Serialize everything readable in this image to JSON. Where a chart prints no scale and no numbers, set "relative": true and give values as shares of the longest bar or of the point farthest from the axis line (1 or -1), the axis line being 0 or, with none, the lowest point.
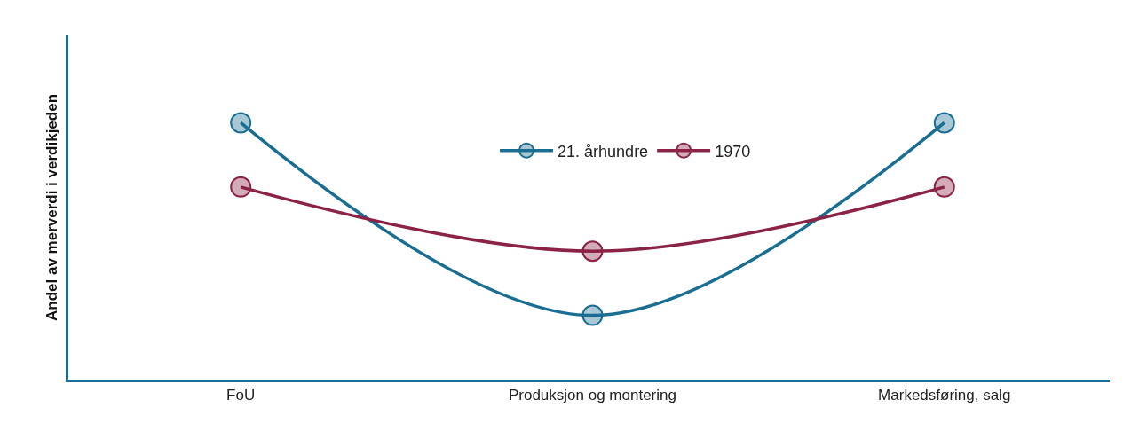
{
  "chart_data": {
    "type": "line",
    "relative": true,
    "ylabel": "Andel av merverdi i verdikjeden",
    "categories": [
      "FoU",
      "Produksjon og montering",
      "Markedsføring, salg"
    ],
    "series": [
      {
        "name": "21. århundre",
        "color": "#1a6e92",
        "values": [
          1,
          0.25,
          1
        ]
      },
      {
        "name": "1970",
        "color": "#8b2346",
        "values": [
          0.75,
          0.5,
          0.75
        ]
      }
    ],
    "marker": "circle",
    "line_style": "solid",
    "legend": "top"
  }
}
